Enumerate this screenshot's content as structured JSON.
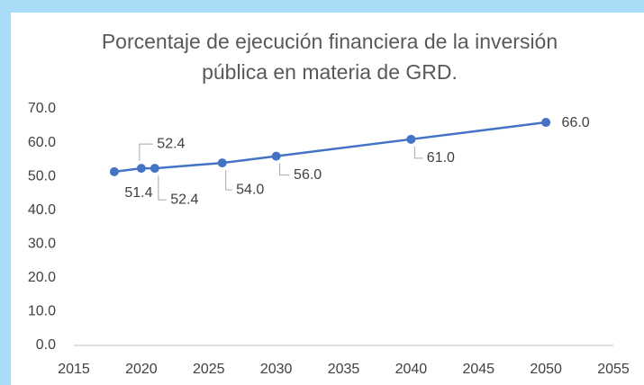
{
  "chart_data": {
    "type": "line",
    "title": [
      "Porcentaje de ejecución financiera de la inversión",
      "pública en materia de GRD."
    ],
    "series": [
      {
        "name": "Porcentaje",
        "color": "#4472c4",
        "x": [
          2018,
          2020,
          2021,
          2026,
          2030,
          2040,
          2050
        ],
        "values": [
          51.4,
          52.4,
          52.4,
          54.0,
          56.0,
          61.0,
          66.0
        ],
        "value_labels": [
          "51.4",
          "52.4",
          "52.4",
          "54.0",
          "56.0",
          "61.0",
          "66.0"
        ]
      }
    ],
    "xlim": [
      2015,
      2055
    ],
    "xticks": [
      2015,
      2020,
      2025,
      2030,
      2035,
      2040,
      2045,
      2050,
      2055
    ],
    "ylim": [
      0,
      70
    ],
    "yticks": [
      {
        "value": 0,
        "label": "0.0"
      },
      {
        "value": 10,
        "label": "10.0"
      },
      {
        "value": 20,
        "label": "20.0"
      },
      {
        "value": 30,
        "label": "30.0"
      },
      {
        "value": 40,
        "label": "40.0"
      },
      {
        "value": 50,
        "label": "50.0"
      },
      {
        "value": 60,
        "label": "60.0"
      },
      {
        "value": 70,
        "label": "70.0"
      }
    ],
    "grid": false
  }
}
